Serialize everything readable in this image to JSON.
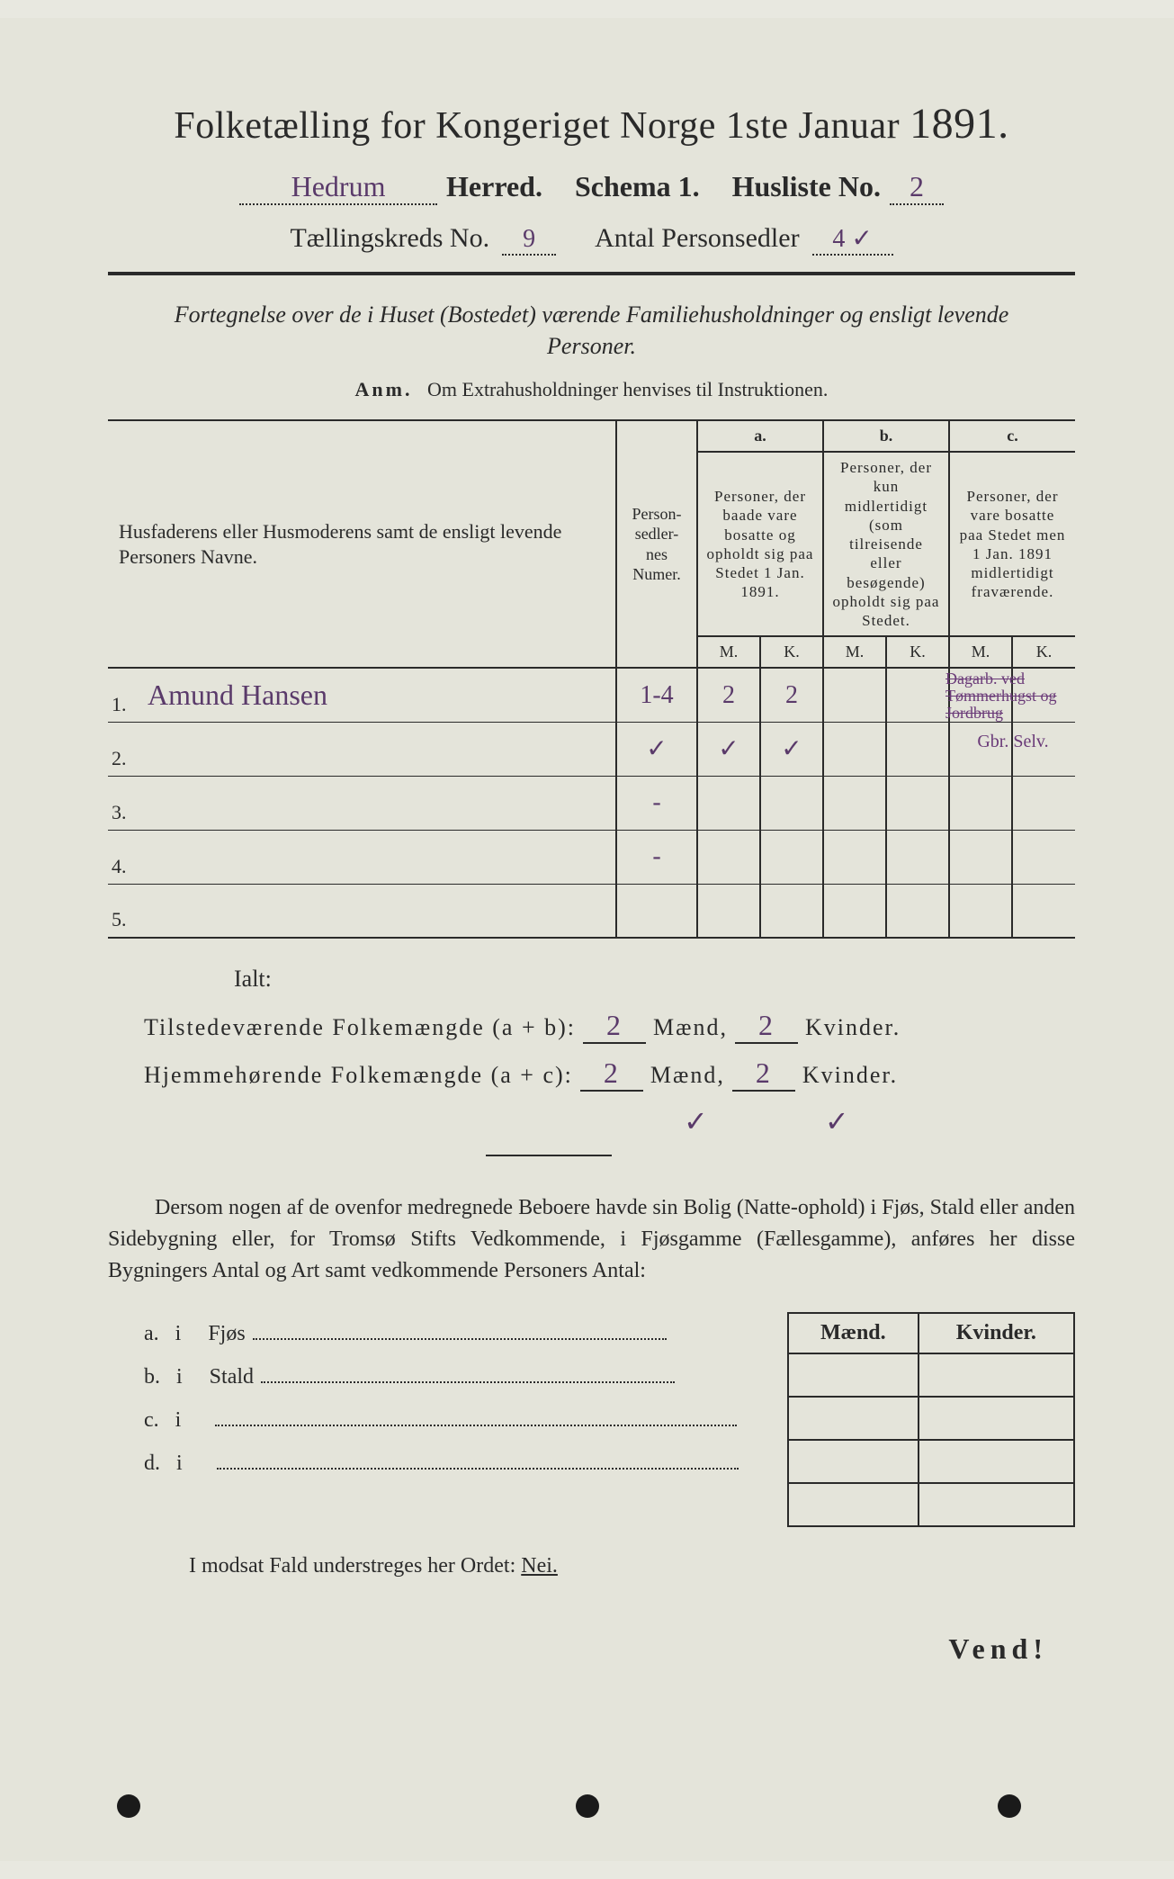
{
  "colors": {
    "paper": "#e4e4da",
    "ink": "#2a2a2a",
    "handwriting": "#5a3a6a",
    "annotation": "#6a3a78"
  },
  "header": {
    "title_prefix": "Folketælling for Kongeriget Norge 1ste Januar",
    "year": "1891.",
    "herred_written": "Hedrum",
    "herred_label": "Herred.",
    "schema_label": "Schema 1.",
    "husliste_label": "Husliste No.",
    "husliste_no": "2",
    "kreds_label": "Tællingskreds No.",
    "kreds_no": "9",
    "antal_label": "Antal Personsedler",
    "antal_val": "4 ✓"
  },
  "subtitle": "Fortegnelse over de i Huset (Bostedet) værende Familiehusholdninger og ensligt levende Personer.",
  "anm": {
    "label": "Anm.",
    "text": "Om Extrahusholdninger henvises til Instruktionen."
  },
  "table": {
    "col1": "Husfaderens eller Husmoderens samt de ensligt levende Personers Navne.",
    "col2": "Person-sedler-nes Numer.",
    "groups": {
      "a": {
        "tag": "a.",
        "text": "Personer, der baade vare bosatte og opholdt sig paa Stedet 1 Jan. 1891."
      },
      "b": {
        "tag": "b.",
        "text": "Personer, der kun midlertidigt (som tilreisende eller besøgende) opholdt sig paa Stedet."
      },
      "c": {
        "tag": "c.",
        "text": "Personer, der vare bosatte paa Stedet men 1 Jan. 1891 midlertidigt fraværende."
      }
    },
    "mk": {
      "m": "M.",
      "k": "K."
    },
    "rows": [
      {
        "n": "1.",
        "name": "Amund Hansen",
        "num": "1-4",
        "aM": "2",
        "aK": "2",
        "bM": "",
        "bK": "",
        "cM": "",
        "cK": "",
        "note1": "Dagarb. ved Tømmerhugst og Jordbrug",
        "note2": ""
      },
      {
        "n": "2.",
        "name": "",
        "num": "✓",
        "aM": "✓",
        "aK": "✓",
        "bM": "",
        "bK": "",
        "cM": "",
        "cK": "",
        "note1": "",
        "note2": "Gbr. Selv."
      },
      {
        "n": "3.",
        "name": "",
        "num": "-",
        "aM": "",
        "aK": "",
        "bM": "",
        "bK": "",
        "cM": "",
        "cK": ""
      },
      {
        "n": "4.",
        "name": "",
        "num": "-",
        "aM": "",
        "aK": "",
        "bM": "",
        "bK": "",
        "cM": "",
        "cK": ""
      },
      {
        "n": "5.",
        "name": "",
        "num": "",
        "aM": "",
        "aK": "",
        "bM": "",
        "bK": "",
        "cM": "",
        "cK": ""
      }
    ]
  },
  "totals": {
    "ialt": "Ialt:",
    "line1_label": "Tilstedeværende Folkemængde (a + b):",
    "line2_label": "Hjemmehørende Folkemængde (a + c):",
    "maend": "Mænd,",
    "kvinder": "Kvinder.",
    "l1_m": "2",
    "l1_k": "2",
    "l2_m": "2",
    "l2_k": "2",
    "check_m": "✓",
    "check_k": "✓"
  },
  "para": "Dersom nogen af de ovenfor medregnede Beboere havde sin Bolig (Natte-ophold) i Fjøs, Stald eller anden Sidebygning eller, for Tromsø Stifts Vedkommende, i Fjøsgamme (Fællesgamme), anføres her disse Bygningers Antal og Art samt vedkommende Personers Antal:",
  "bygn": {
    "header_m": "Mænd.",
    "header_k": "Kvinder.",
    "rows": [
      {
        "tag": "a.",
        "i": "i",
        "label": "Fjøs"
      },
      {
        "tag": "b.",
        "i": "i",
        "label": "Stald"
      },
      {
        "tag": "c.",
        "i": "i",
        "label": ""
      },
      {
        "tag": "d.",
        "i": "i",
        "label": ""
      }
    ]
  },
  "nei": {
    "pre": "I modsat Fald understreges her Ordet:",
    "word": "Nei."
  },
  "vend": "Vend!"
}
